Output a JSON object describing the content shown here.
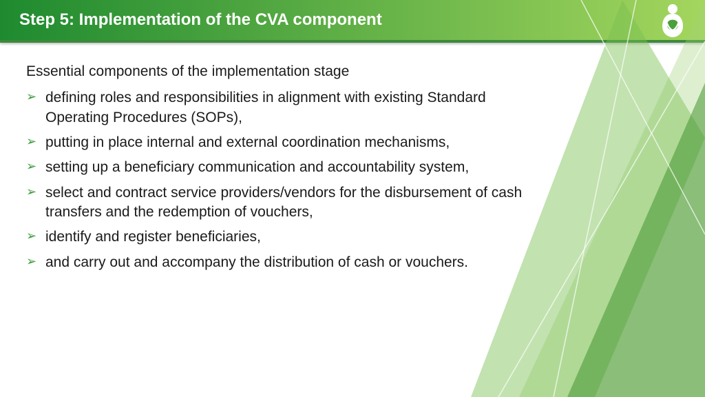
{
  "header": {
    "title": "Step 5: Implementation of the CVA component",
    "title_color": "#ffffff",
    "title_fontsize": 24,
    "gradient_start": "#1e8a2f",
    "gradient_end": "#a4d65e",
    "underline_color": "#3c8a3c",
    "icon_color": "#ffffff"
  },
  "content": {
    "subtitle": "Essential components of the implementation stage",
    "subtitle_fontsize": 21,
    "bullet_color": "#3c9a3c",
    "text_color": "#1a1a1a",
    "text_fontsize": 21,
    "items": [
      "defining roles and responsibilities in alignment with existing Standard Operating Procedures (SOPs),",
      "putting in place internal and external coordination mechanisms,",
      " setting up a beneficiary communication and accountability system,",
      "select and contract service providers/vendors for the disbursement of cash transfers and the redemption of vouchers,",
      "identify and register beneficiaries,",
      "and carry out and accompany the distribution of cash or vouchers."
    ]
  },
  "decoration": {
    "shape_fill_light": "rgba(160,210,120,0.35)",
    "shape_fill_mid": "rgba(120,190,80,0.45)",
    "shape_fill_dark": "rgba(70,150,50,0.55)",
    "shape_stroke": "rgba(255,255,255,0.7)"
  }
}
